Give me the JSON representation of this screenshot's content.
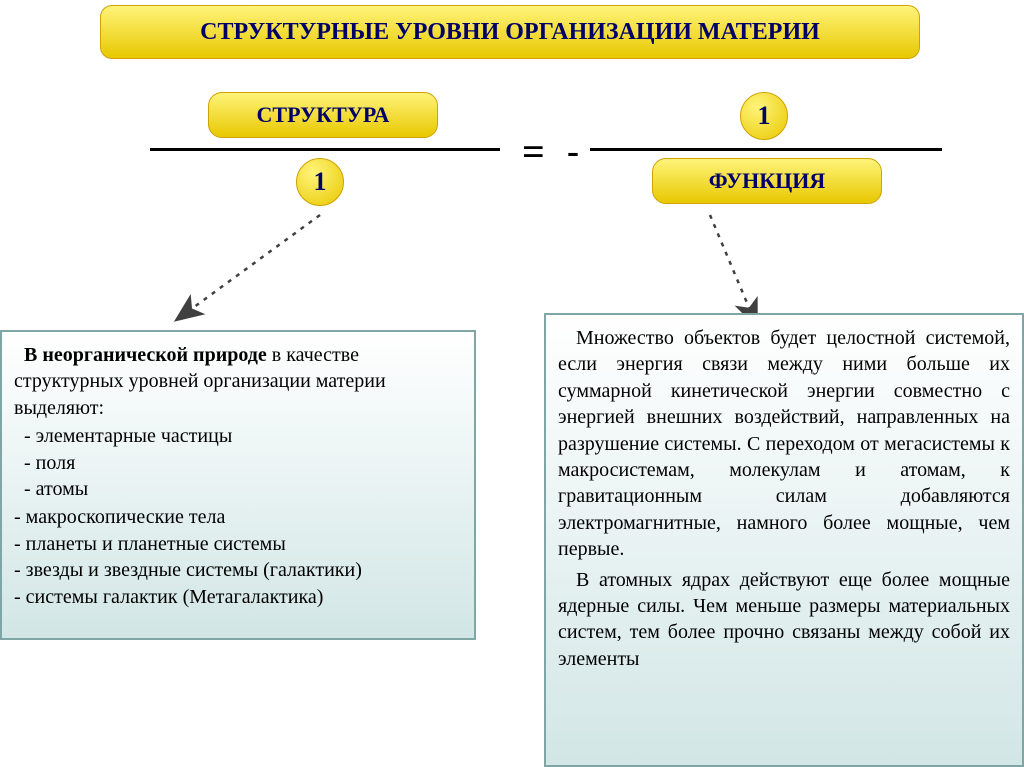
{
  "colors": {
    "yellow_top": "#fff47a",
    "yellow_bottom": "#e8c800",
    "yellow_border": "#cfa200",
    "blue_text": "#000066",
    "box_bg_top": "#ffffff",
    "box_bg_bottom": "#d2e6e6",
    "box_border": "#7fa5a5",
    "arrow_color": "#404040",
    "line_color": "#000000"
  },
  "title": "СТРУКТУРНЫЕ УРОВНИ ОРГАНИЗАЦИИ МАТЕРИИ",
  "formula": {
    "left_label": "СТРУКТУРА",
    "left_denom": "1",
    "equals": "=",
    "neg": "-",
    "right_numer": "1",
    "right_label": "ФУНКЦИЯ"
  },
  "left_box": {
    "lead": "В неорганической природе",
    "tail": " в качестве структурных уровней организации материи  выделяют:",
    "items_indent": [
      "элементарные частицы",
      "поля",
      "атомы"
    ],
    "items": [
      "макроскопические тела",
      "планеты и планетные системы",
      "звезды и звездные системы (галактики)",
      "системы галактик (Метагалактика)"
    ]
  },
  "right_box": {
    "p1": "Множество объектов будет целостной системой, если энергия связи между ними больше их суммарной кинетической энергии совместно с энергией внешних воздействий, направленных на разрушение системы. С переходом от мегасистемы к макросистемам, молекулам и атомам, к гравитационным силам добавляются электромагнитные, намного более мощные, чем первые.",
    "p2": "В атомных ядрах действуют еще более мощные ядерные силы. Чем меньше размеры материальных систем, тем более прочно связаны между собой их элементы"
  },
  "layout": {
    "title_fontsize": 24,
    "pill_fontsize": 22,
    "circle_fontsize": 26,
    "box_fontsize": 20
  }
}
